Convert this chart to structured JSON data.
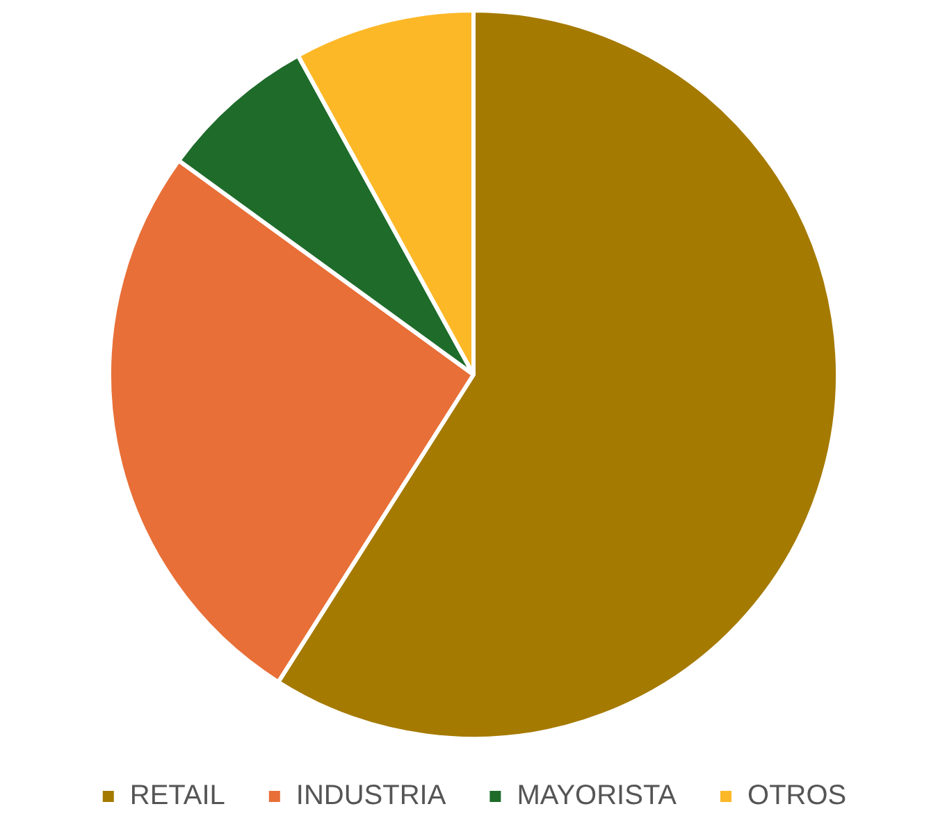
{
  "chart_data": {
    "type": "pie",
    "categories": [
      "RETAIL",
      "INDUSTRIA",
      "MAYORISTA",
      "OTROS"
    ],
    "values": [
      59,
      26,
      7,
      8
    ],
    "colors": [
      "#a57a00",
      "#e86f37",
      "#1e6b2a",
      "#fdb827"
    ],
    "legend": "bottom"
  }
}
